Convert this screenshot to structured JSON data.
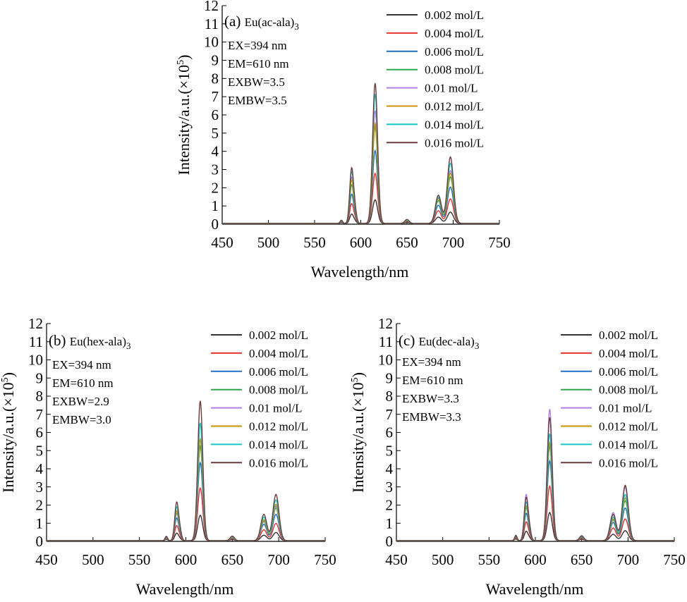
{
  "chart_data": [
    {
      "type": "line",
      "panel": "(a)",
      "compound": "Eu(ac-ala)",
      "compound_sub": "3",
      "params": [
        "EX=394 nm",
        "EM=610 nm",
        "EXBW=3.5",
        "EMBW=3.5"
      ],
      "xlabel": "Wavelength/nm",
      "ylabel_main": "Intensity/a.u.(×10",
      "ylabel_sup": "5",
      "ylabel_end": ")",
      "xlim": [
        450,
        750
      ],
      "ylim": [
        0,
        12
      ],
      "xticks": [
        "450",
        "500",
        "550",
        "600",
        "650",
        "700",
        "750"
      ],
      "yticks": [
        "0",
        "1",
        "2",
        "3",
        "4",
        "5",
        "6",
        "7",
        "8",
        "9",
        "10",
        "11",
        "12"
      ],
      "series": [
        {
          "name": "0.002 mol/L",
          "color": "#333333",
          "peaks": {
            "p579": 0.05,
            "p590": 0.5,
            "p615": 1.3,
            "p650": 0.05,
            "p685": 0.35,
            "p697": 0.62
          }
        },
        {
          "name": "0.004 mol/L",
          "color": "#e8322b",
          "peaks": {
            "p579": 0.08,
            "p590": 1.05,
            "p615": 2.75,
            "p650": 0.1,
            "p685": 0.7,
            "p697": 1.35
          }
        },
        {
          "name": "0.006 mol/L",
          "color": "#1f6fc4",
          "peaks": {
            "p579": 0.1,
            "p590": 1.55,
            "p615": 4.0,
            "p650": 0.13,
            "p685": 1.0,
            "p697": 2.0
          }
        },
        {
          "name": "0.008 mol/L",
          "color": "#2ea84a",
          "peaks": {
            "p579": 0.12,
            "p590": 2.05,
            "p615": 5.3,
            "p650": 0.16,
            "p685": 1.25,
            "p697": 2.55
          }
        },
        {
          "name": "0.01 mol/L",
          "color": "#b07ee8",
          "peaks": {
            "p579": 0.14,
            "p590": 2.45,
            "p615": 6.2,
            "p650": 0.18,
            "p685": 1.4,
            "p697": 2.9
          }
        },
        {
          "name": "0.012 mol/L",
          "color": "#c99200",
          "peaks": {
            "p579": 0.15,
            "p590": 2.3,
            "p615": 5.5,
            "p650": 0.17,
            "p685": 1.35,
            "p697": 2.75
          }
        },
        {
          "name": "0.014 mol/L",
          "color": "#13c7c7",
          "peaks": {
            "p579": 0.17,
            "p590": 2.75,
            "p615": 7.1,
            "p650": 0.2,
            "p685": 1.45,
            "p697": 3.3
          }
        },
        {
          "name": "0.016 mol/L",
          "color": "#6b3b3b",
          "peaks": {
            "p579": 0.18,
            "p590": 2.95,
            "p615": 7.7,
            "p650": 0.22,
            "p685": 1.55,
            "p697": 3.65
          }
        }
      ]
    },
    {
      "type": "line",
      "panel": "(b)",
      "compound": "Eu(hex-ala)",
      "compound_sub": "3",
      "params": [
        "EX=394 nm",
        "EM=610 nm",
        "EXBW=2.9",
        "EMBW=3.0"
      ],
      "xlabel": "Wavelength/nm",
      "ylabel_main": "Intensity/a.u.(×10",
      "ylabel_sup": "5",
      "ylabel_end": ")",
      "xlim": [
        450,
        750
      ],
      "ylim": [
        0,
        12
      ],
      "xticks": [
        "450",
        "500",
        "550",
        "600",
        "650",
        "700",
        "750"
      ],
      "yticks": [
        "0",
        "1",
        "2",
        "3",
        "4",
        "5",
        "6",
        "7",
        "8",
        "9",
        "10",
        "11",
        "12"
      ],
      "series": [
        {
          "name": "0.002 mol/L",
          "color": "#333333",
          "peaks": {
            "p579": 0.08,
            "p590": 0.4,
            "p615": 1.4,
            "p650": 0.06,
            "p685": 0.3,
            "p697": 0.45
          }
        },
        {
          "name": "0.004 mol/L",
          "color": "#e8322b",
          "peaks": {
            "p579": 0.12,
            "p590": 0.8,
            "p615": 2.9,
            "p650": 0.1,
            "p685": 0.6,
            "p697": 0.95
          }
        },
        {
          "name": "0.006 mol/L",
          "color": "#1f6fc4",
          "peaks": {
            "p579": 0.15,
            "p590": 1.2,
            "p615": 4.3,
            "p650": 0.14,
            "p685": 0.9,
            "p697": 1.45
          }
        },
        {
          "name": "0.008 mol/L",
          "color": "#2ea84a",
          "peaks": {
            "p579": 0.17,
            "p590": 1.45,
            "p615": 5.2,
            "p650": 0.17,
            "p685": 1.05,
            "p697": 1.8
          }
        },
        {
          "name": "0.01 mol/L",
          "color": "#b07ee8",
          "peaks": {
            "p579": 0.18,
            "p590": 1.55,
            "p615": 5.6,
            "p650": 0.18,
            "p685": 1.1,
            "p697": 1.9
          }
        },
        {
          "name": "0.012 mol/L",
          "color": "#c99200",
          "peaks": {
            "p579": 0.19,
            "p590": 1.6,
            "p615": 5.6,
            "p650": 0.19,
            "p685": 1.15,
            "p697": 2.0
          }
        },
        {
          "name": "0.014 mol/L",
          "color": "#13c7c7",
          "peaks": {
            "p579": 0.21,
            "p590": 1.8,
            "p615": 6.5,
            "p650": 0.22,
            "p685": 1.3,
            "p697": 2.25
          }
        },
        {
          "name": "0.016 mol/L",
          "color": "#6b3b3b",
          "peaks": {
            "p579": 0.24,
            "p590": 2.05,
            "p615": 7.7,
            "p650": 0.25,
            "p685": 1.45,
            "p697": 2.55
          }
        }
      ]
    },
    {
      "type": "line",
      "panel": "(c)",
      "compound": "Eu(dec-ala)",
      "compound_sub": "3",
      "params": [
        "EX=394 nm",
        "EM=610 nm",
        "EXBW=3.3",
        "EMBW=3.3"
      ],
      "xlabel": "Wavelength/nm",
      "ylabel_main": "Intensity/a.u.(×10",
      "ylabel_sup": "5",
      "ylabel_end": ")",
      "xlim": [
        450,
        750
      ],
      "ylim": [
        0,
        12
      ],
      "xticks": [
        "450",
        "500",
        "550",
        "600",
        "650",
        "700",
        "750"
      ],
      "yticks": [
        "0",
        "1",
        "2",
        "3",
        "4",
        "5",
        "6",
        "7",
        "8",
        "9",
        "10",
        "11",
        "12"
      ],
      "series": [
        {
          "name": "0.002 mol/L",
          "color": "#333333",
          "peaks": {
            "p579": 0.1,
            "p590": 0.5,
            "p615": 1.55,
            "p650": 0.08,
            "p685": 0.35,
            "p697": 0.55
          }
        },
        {
          "name": "0.004 mol/L",
          "color": "#e8322b",
          "peaks": {
            "p579": 0.15,
            "p590": 1.0,
            "p615": 3.0,
            "p650": 0.12,
            "p685": 0.7,
            "p697": 1.2
          }
        },
        {
          "name": "0.006 mol/L",
          "color": "#1f6fc4",
          "peaks": {
            "p579": 0.2,
            "p590": 1.45,
            "p615": 4.4,
            "p650": 0.17,
            "p685": 1.0,
            "p697": 1.8
          }
        },
        {
          "name": "0.008 mol/L",
          "color": "#2ea84a",
          "peaks": {
            "p579": 0.22,
            "p590": 1.75,
            "p615": 5.2,
            "p650": 0.2,
            "p685": 1.15,
            "p697": 2.2
          }
        },
        {
          "name": "0.01 mol/L",
          "color": "#b07ee8",
          "peaks": {
            "p579": 0.3,
            "p590": 2.45,
            "p615": 7.25,
            "p650": 0.28,
            "p685": 1.55,
            "p697": 2.95
          }
        },
        {
          "name": "0.012 mol/L",
          "color": "#c99200",
          "peaks": {
            "p579": 0.24,
            "p590": 1.85,
            "p615": 5.4,
            "p650": 0.21,
            "p685": 1.2,
            "p697": 2.35
          }
        },
        {
          "name": "0.014 mol/L",
          "color": "#13c7c7",
          "peaks": {
            "p579": 0.26,
            "p590": 2.05,
            "p615": 5.9,
            "p650": 0.23,
            "p685": 1.3,
            "p697": 2.55
          }
        },
        {
          "name": "0.016 mol/L",
          "color": "#6b3b3b",
          "peaks": {
            "p579": 0.29,
            "p590": 2.3,
            "p615": 6.8,
            "p650": 0.26,
            "p685": 1.45,
            "p697": 3.05
          }
        }
      ]
    }
  ]
}
